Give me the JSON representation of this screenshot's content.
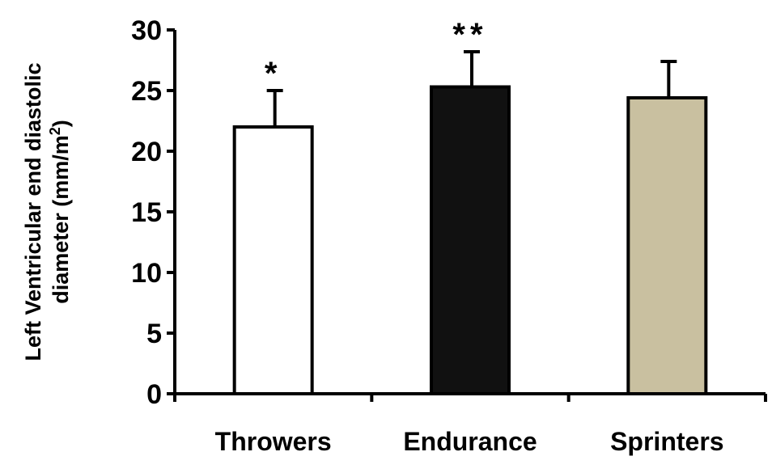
{
  "chart_data": {
    "type": "bar",
    "categories": [
      "Throwers",
      "Endurance",
      "Sprinters"
    ],
    "values": [
      22,
      25.3,
      24.4
    ],
    "errors": [
      3.0,
      2.9,
      3.0
    ],
    "bar_colors": [
      "#ffffff",
      "#111111",
      "#c9c0a0"
    ],
    "significance": [
      "*",
      "**",
      ""
    ],
    "ylabel_line1": "Left Ventricular end diastolic",
    "ylabel_line2_prefix": "diameter (mm/m",
    "ylabel_sup": "2",
    "ylabel_line2_suffix": ")",
    "ylim": [
      0,
      30
    ],
    "yticks": [
      "0",
      "5",
      "10",
      "15",
      "20",
      "25",
      "30"
    ],
    "grid": false
  }
}
